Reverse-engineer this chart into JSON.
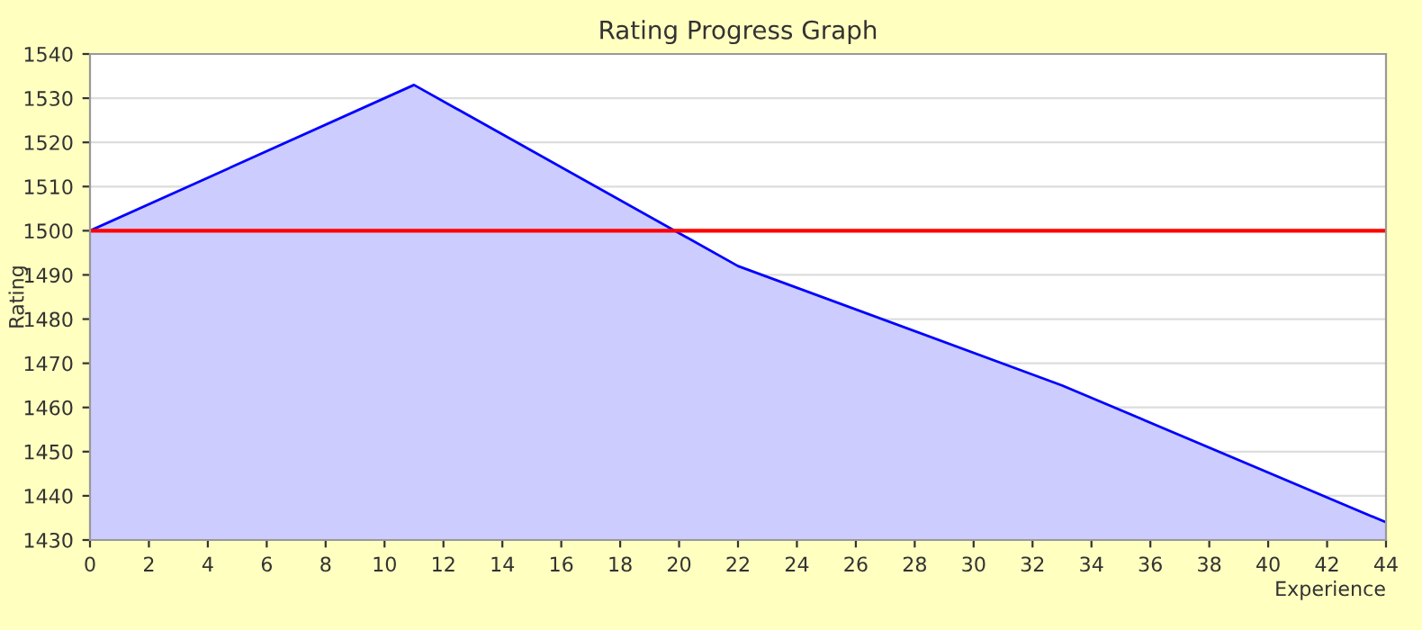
{
  "chart_data": {
    "type": "area",
    "title": "Rating Progress Graph",
    "xlabel": "Experience",
    "ylabel": "Rating",
    "x": [
      0,
      11,
      22,
      33,
      44
    ],
    "series": [
      {
        "color": "#0000ff",
        "values": [
          1500,
          1533,
          1492,
          1465,
          1434
        ]
      }
    ],
    "xlim": [
      0,
      44
    ],
    "xticks": [
      0,
      2,
      4,
      6,
      8,
      10,
      12,
      14,
      16,
      18,
      20,
      22,
      24,
      26,
      28,
      30,
      32,
      34,
      36,
      38,
      40,
      42,
      44
    ],
    "ylim": [
      1430,
      1540
    ],
    "yticks": [
      1430,
      1440,
      1450,
      1460,
      1470,
      1480,
      1490,
      1500,
      1510,
      1520,
      1530,
      1540
    ],
    "ref_lines": [
      {
        "axis": "y",
        "value": 1500,
        "color": "#ff0000"
      }
    ],
    "grid": "y"
  }
}
